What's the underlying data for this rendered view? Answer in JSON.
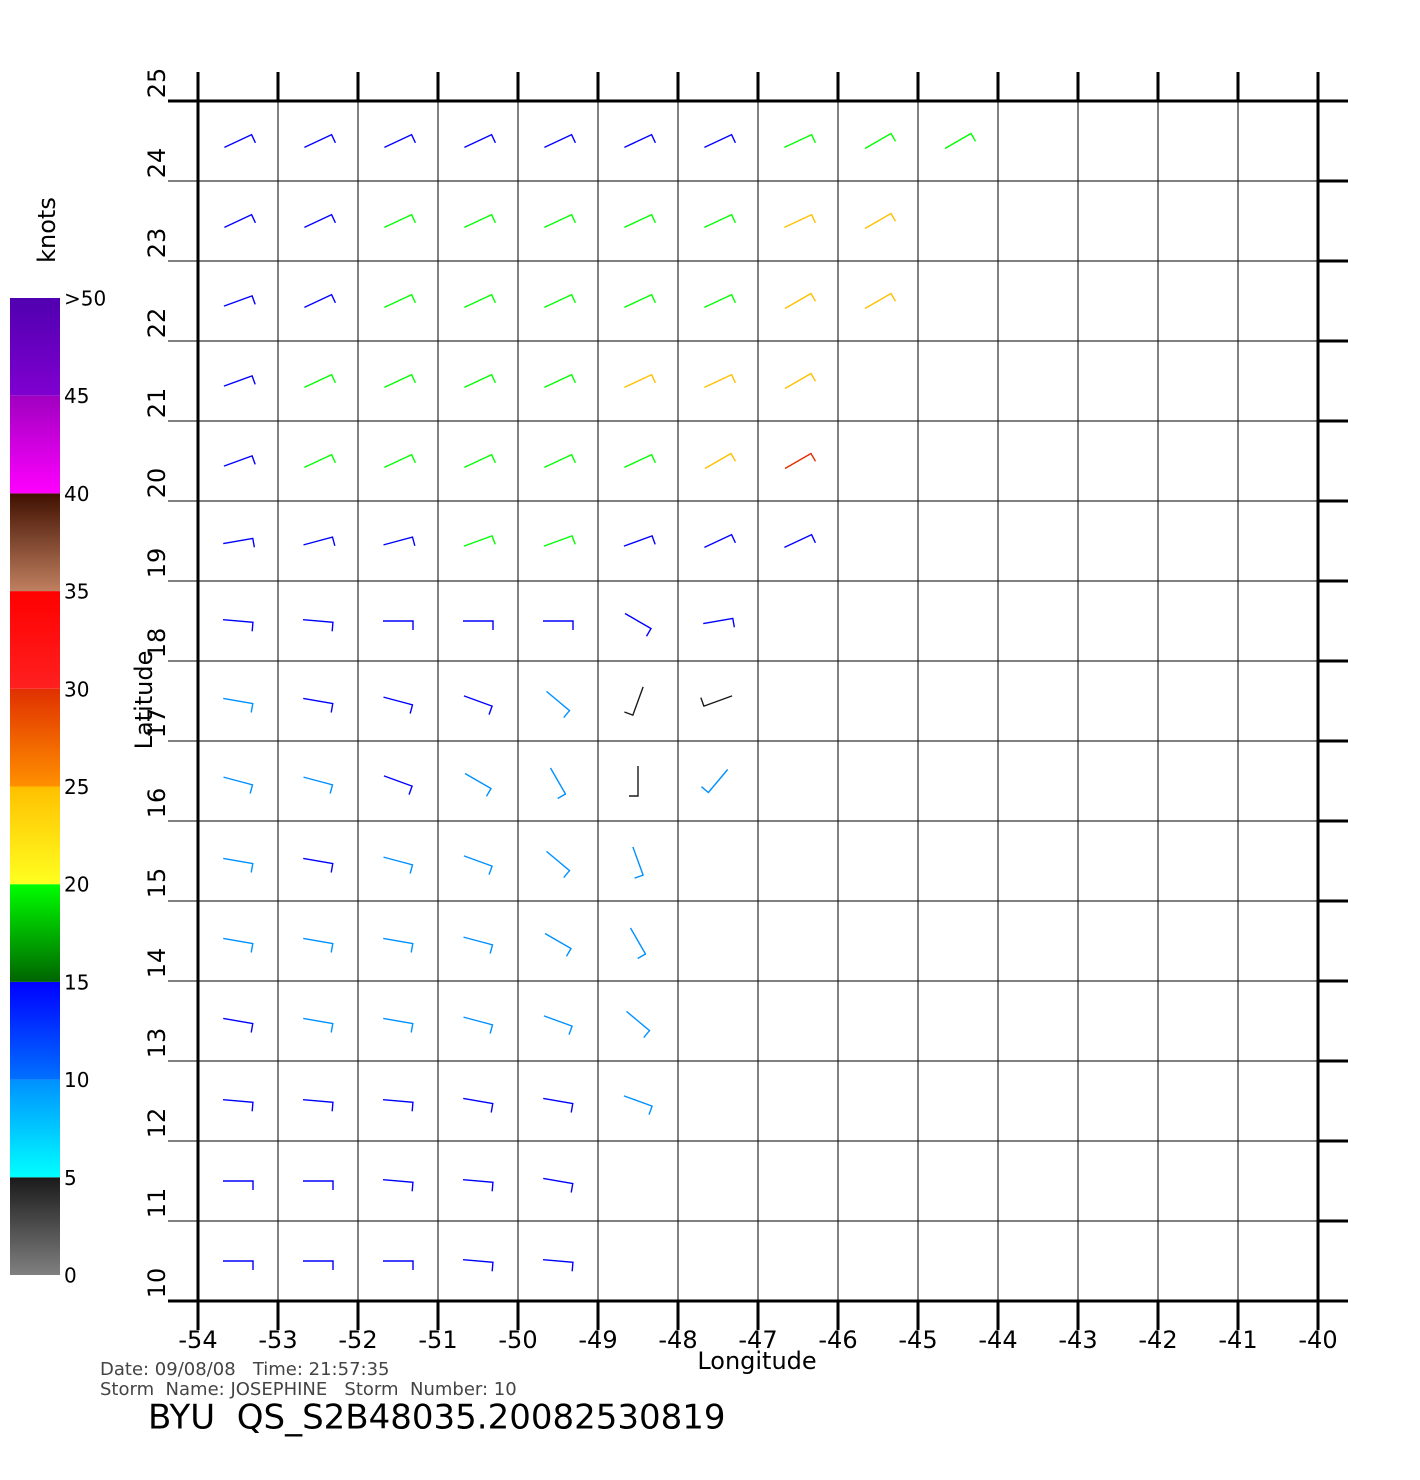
{
  "chart_data": {
    "type": "barb",
    "xlabel": "Longitude",
    "ylabel": "Latitude",
    "xlim": [
      -54,
      -40
    ],
    "ylim": [
      10,
      25
    ],
    "xticks": [
      -54,
      -53,
      -52,
      -51,
      -50,
      -49,
      -48,
      -47,
      -46,
      -45,
      -44,
      -43,
      -42,
      -41,
      -40
    ],
    "yticks": [
      10,
      11,
      12,
      13,
      14,
      15,
      16,
      17,
      18,
      19,
      20,
      21,
      22,
      23,
      24,
      25
    ],
    "grid": true,
    "lon": [
      -53.5,
      -52.5,
      -51.5,
      -50.5,
      -49.5,
      -48.5,
      -47.5,
      -46.5,
      -45.5,
      -44.5
    ],
    "lat": [
      24.5,
      23.5,
      22.5,
      21.5,
      20.5,
      19.5,
      18.5,
      17.5,
      16.5,
      15.5,
      14.5,
      13.5,
      12.5,
      11.5,
      10.5
    ],
    "speed": [
      [
        12,
        12,
        13,
        14,
        13,
        13,
        14,
        15,
        16,
        18
      ],
      [
        11,
        12,
        16,
        17,
        16,
        16,
        18,
        21,
        21,
        null
      ],
      [
        12,
        13,
        17,
        17,
        17,
        17,
        18,
        21,
        22,
        null
      ],
      [
        12,
        16,
        17,
        17,
        17,
        22,
        21,
        23,
        null,
        null
      ],
      [
        13,
        16,
        17,
        17,
        16,
        18,
        21,
        26,
        null,
        null
      ],
      [
        12,
        13,
        14,
        16,
        15,
        14,
        14,
        14,
        null,
        null
      ],
      [
        12,
        12,
        13,
        13,
        12,
        12,
        12,
        null,
        null,
        null
      ],
      [
        9,
        11,
        11,
        10,
        8,
        4,
        4,
        null,
        null,
        null
      ],
      [
        8,
        8,
        10,
        9,
        7,
        4,
        6,
        null,
        null,
        null
      ],
      [
        9,
        10,
        8,
        8,
        8,
        7,
        null,
        null,
        null,
        null
      ],
      [
        9,
        9,
        9,
        8,
        7,
        7,
        null,
        null,
        null,
        null
      ],
      [
        10,
        9,
        9,
        8,
        7,
        7,
        null,
        null,
        null,
        null
      ],
      [
        11,
        10,
        10,
        10,
        10,
        9,
        null,
        null,
        null,
        null
      ],
      [
        12,
        11,
        11,
        11,
        11,
        null,
        null,
        null,
        null,
        null
      ],
      [
        12,
        12,
        12,
        11,
        11,
        null,
        null,
        null,
        null,
        null
      ]
    ],
    "direction": [
      [
        65,
        65,
        65,
        65,
        65,
        65,
        65,
        65,
        60,
        60
      ],
      [
        65,
        65,
        65,
        65,
        65,
        65,
        65,
        65,
        60,
        null
      ],
      [
        70,
        65,
        65,
        65,
        65,
        65,
        65,
        60,
        60,
        null
      ],
      [
        70,
        65,
        65,
        65,
        65,
        65,
        65,
        60,
        null,
        null
      ],
      [
        70,
        65,
        65,
        65,
        65,
        65,
        60,
        60,
        null,
        null
      ],
      [
        80,
        75,
        75,
        70,
        70,
        70,
        65,
        65,
        null,
        null
      ],
      [
        95,
        95,
        90,
        90,
        90,
        120,
        80,
        null,
        null,
        null
      ],
      [
        100,
        100,
        105,
        110,
        130,
        200,
        250,
        null,
        null,
        null
      ],
      [
        105,
        105,
        110,
        120,
        150,
        180,
        220,
        null,
        null,
        null
      ],
      [
        100,
        100,
        105,
        110,
        130,
        160,
        null,
        null,
        null,
        null
      ],
      [
        100,
        100,
        100,
        105,
        120,
        150,
        null,
        null,
        null,
        null
      ],
      [
        100,
        100,
        100,
        105,
        110,
        130,
        null,
        null,
        null,
        null
      ],
      [
        95,
        95,
        95,
        100,
        100,
        110,
        null,
        null,
        null,
        null
      ],
      [
        90,
        90,
        95,
        95,
        100,
        null,
        null,
        null,
        null,
        null
      ],
      [
        90,
        90,
        90,
        95,
        95,
        null,
        null,
        null,
        null,
        null
      ]
    ],
    "colorbar": {
      "title": "knots",
      "lim": [
        0,
        50
      ],
      "ticks": [
        0,
        5,
        10,
        15,
        20,
        25,
        30,
        35,
        40,
        45,
        {
          "value": 50,
          "label": ">50"
        }
      ],
      "bin_colors": [
        [
          "#808080",
          "#1a1a1a"
        ],
        [
          "#00ffff",
          "#0090ff"
        ],
        [
          "#0070ff",
          "#0000ff"
        ],
        [
          "#006400",
          "#00ff00"
        ],
        [
          "#ffff20",
          "#ffc000"
        ],
        [
          "#ff9000",
          "#e03000"
        ],
        [
          "#ff2020",
          "#ff0000"
        ],
        [
          "#c08060",
          "#401000"
        ],
        [
          "#ff00ff",
          "#a000c0"
        ],
        [
          "#8000d0",
          "#5000b0"
        ]
      ]
    },
    "footer": {
      "line1": "Date: 09/08/08   Time: 21:57:35",
      "line2": "Storm  Name: JOSEPHINE   Storm  Number: 10",
      "title": "BYU  QS_S2B48035.20082530819"
    }
  }
}
